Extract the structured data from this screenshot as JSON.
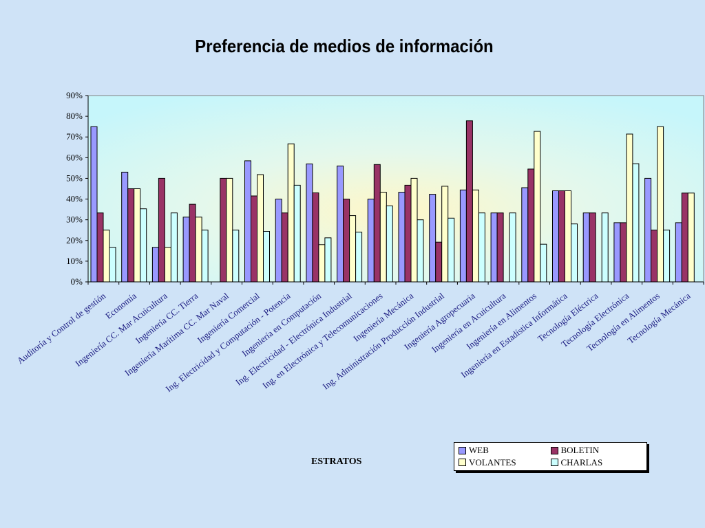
{
  "chart_data": {
    "type": "bar",
    "title": "Preferencia de medios de información",
    "xlabel": "ESTRATOS",
    "ylabel": "",
    "ylim": [
      0,
      0.9
    ],
    "yticks": [
      "0%",
      "10%",
      "20%",
      "30%",
      "40%",
      "50%",
      "60%",
      "70%",
      "80%",
      "90%"
    ],
    "legend_position": "bottom-right",
    "grid": false,
    "categories": [
      "Auditoría y Control de gestión",
      "Economía",
      "Ingeniería CC. Mar Acuicultura",
      "Ingeniería CC. Tierra",
      "Ingeniería Marítima CC. Mar Naval",
      "Ingeniería Comercial",
      "Ing. Electricidad y Computación - Potencia",
      "Ingeniería en Computación",
      "Ing. Electricidad - Electrónica Industrial",
      "Ing. en Electrónica y Telecomunicaciones",
      "Ingeniería Mecánica",
      "Ing. Administración Producción Industrial",
      "Ingeniería Agropecuaria",
      "Ingeniería en Acuicultura",
      "Ingeniería en Alimentos",
      "Ingeniería en Estadística Informática",
      "Tecnología Eléctrica",
      "Tecnología Electrónica",
      "Tecnología en Alimentos",
      "Tecnología Mecánica"
    ],
    "series": [
      {
        "name": "WEB",
        "color": "#9999ff",
        "values": [
          0.75,
          0.53,
          0.167,
          0.313,
          0,
          0.585,
          0.4,
          0.57,
          0.56,
          0.4,
          0.433,
          0.423,
          0.444,
          0.333,
          0.455,
          0.44,
          0.333,
          0.286,
          0.5,
          0.286
        ]
      },
      {
        "name": "BOLETIN",
        "color": "#993366",
        "values": [
          0.333,
          0.45,
          0.5,
          0.375,
          0.5,
          0.415,
          0.333,
          0.43,
          0.4,
          0.567,
          0.467,
          0.192,
          0.778,
          0.333,
          0.545,
          0.44,
          0.333,
          0.286,
          0.25,
          0.429
        ]
      },
      {
        "name": "VOLANTES",
        "color": "#ffffcc",
        "values": [
          0.25,
          0.45,
          0.167,
          0.313,
          0.5,
          0.518,
          0.667,
          0.18,
          0.32,
          0.433,
          0.5,
          0.462,
          0.444,
          0,
          0.727,
          0.44,
          0,
          0.714,
          0.75,
          0.429
        ]
      },
      {
        "name": "CHARLAS",
        "color": "#ccffff",
        "values": [
          0.167,
          0.353,
          0.333,
          0.25,
          0.25,
          0.244,
          0.467,
          0.213,
          0.24,
          0.367,
          0.3,
          0.308,
          0.333,
          0.333,
          0.182,
          0.28,
          0.333,
          0.571,
          0.25,
          0
        ]
      }
    ]
  }
}
